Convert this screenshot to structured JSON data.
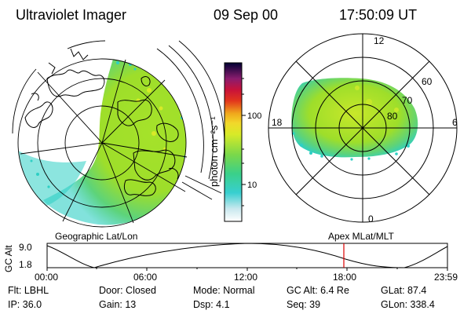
{
  "header": {
    "instrument": "Ultraviolet Imager",
    "date": "09 Sep 00",
    "time": "17:50:09 UT"
  },
  "colorbar": {
    "unit_label": "photon cm⁻²s⁻¹",
    "ticks": [
      "100",
      "10"
    ],
    "scale": "log"
  },
  "polar_plot": {
    "labels": [
      "12",
      "18",
      "6",
      "0",
      "60",
      "70",
      "80"
    ]
  },
  "plot_labels": {
    "left": "Geographic Lat/Lon",
    "right": "Apex  MLat/MLT"
  },
  "altitude_panel": {
    "ylabel": "GC Alt",
    "ytick_top": "9.0",
    "ytick_bottom": "1.8",
    "xticks": [
      "00:00",
      "06:00",
      "12:00",
      "18:00",
      "23:59"
    ],
    "current_time_marker": "17:50"
  },
  "metadata": {
    "row1": [
      "Flt: LBHL",
      "Door: Closed",
      "Mode: Normal",
      "GC Alt: 6.4 Re",
      "GLat:  87.4"
    ],
    "row2": [
      "IP: 36.0",
      "Gain: 13",
      "Dsp:      4.1",
      "Seq: 39",
      "GLon: 338.4"
    ]
  },
  "colors": {
    "marker": "#dd0000",
    "image_green": "#9ede2a",
    "image_cyan": "#2ecfc4"
  }
}
